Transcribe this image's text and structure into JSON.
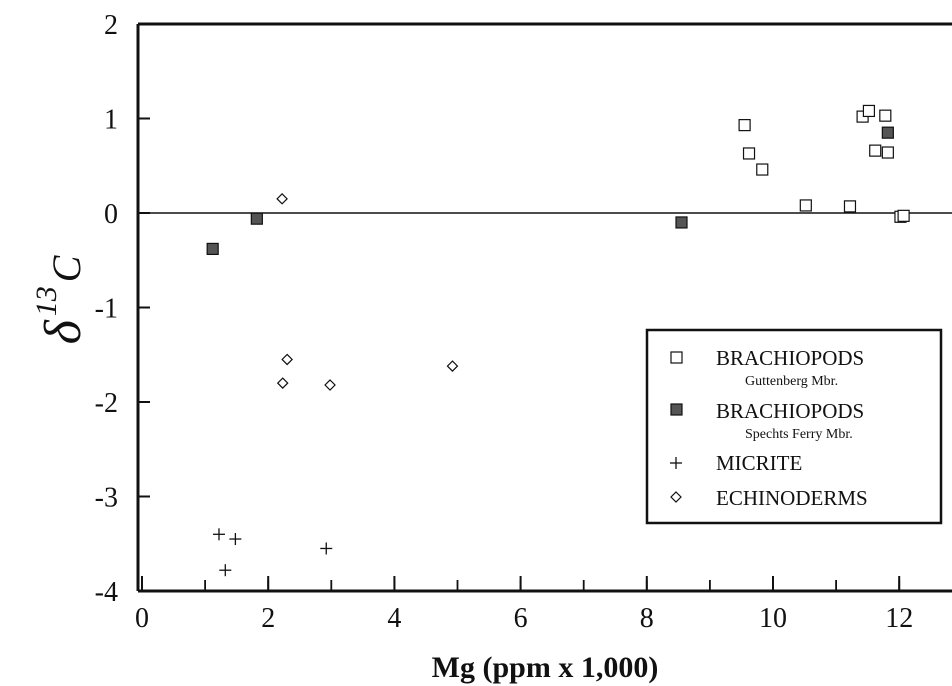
{
  "chart_data": {
    "type": "scatter",
    "xlabel": "Mg (ppm x 1,000)",
    "ylabel": {
      "symbol": "δ",
      "superscript": "13",
      "letter": "C"
    },
    "xlim": [
      0,
      13
    ],
    "ylim": [
      -4,
      2
    ],
    "x_ticks": [
      "0",
      "2",
      "4",
      "6",
      "8",
      "10",
      "12"
    ],
    "y_ticks": [
      "2",
      "1",
      "0",
      "-1",
      "-2",
      "-3",
      "-4"
    ],
    "reference_line_y": 0,
    "legend_position": "right",
    "series": [
      {
        "name": "BRACHIOPODS",
        "subtitle": "Guttenberg Mbr.",
        "marker": "open-square",
        "points": [
          [
            9.55,
            0.93
          ],
          [
            9.62,
            0.63
          ],
          [
            9.83,
            0.46
          ],
          [
            10.52,
            0.08
          ],
          [
            11.22,
            0.07
          ],
          [
            11.42,
            1.02
          ],
          [
            11.52,
            1.08
          ],
          [
            11.62,
            0.66
          ],
          [
            11.78,
            1.03
          ],
          [
            11.82,
            0.64
          ],
          [
            12.02,
            -0.04
          ],
          [
            12.07,
            -0.03
          ]
        ]
      },
      {
        "name": "BRACHIOPODS",
        "subtitle": "Spechts Ferry Mbr.",
        "marker": "filled-square",
        "points": [
          [
            1.12,
            -0.38
          ],
          [
            1.82,
            -0.06
          ],
          [
            8.55,
            -0.1
          ],
          [
            11.82,
            0.85
          ]
        ]
      },
      {
        "name": "MICRITE",
        "subtitle": "",
        "marker": "plus",
        "points": [
          [
            1.22,
            -3.4
          ],
          [
            1.32,
            -3.78
          ],
          [
            1.48,
            -3.45
          ],
          [
            2.92,
            -3.55
          ]
        ]
      },
      {
        "name": "ECHINODERMS",
        "subtitle": "",
        "marker": "diamond",
        "points": [
          [
            2.22,
            0.15
          ],
          [
            2.23,
            -1.8
          ],
          [
            2.3,
            -1.55
          ],
          [
            2.98,
            -1.82
          ],
          [
            4.92,
            -1.62
          ]
        ]
      }
    ]
  }
}
